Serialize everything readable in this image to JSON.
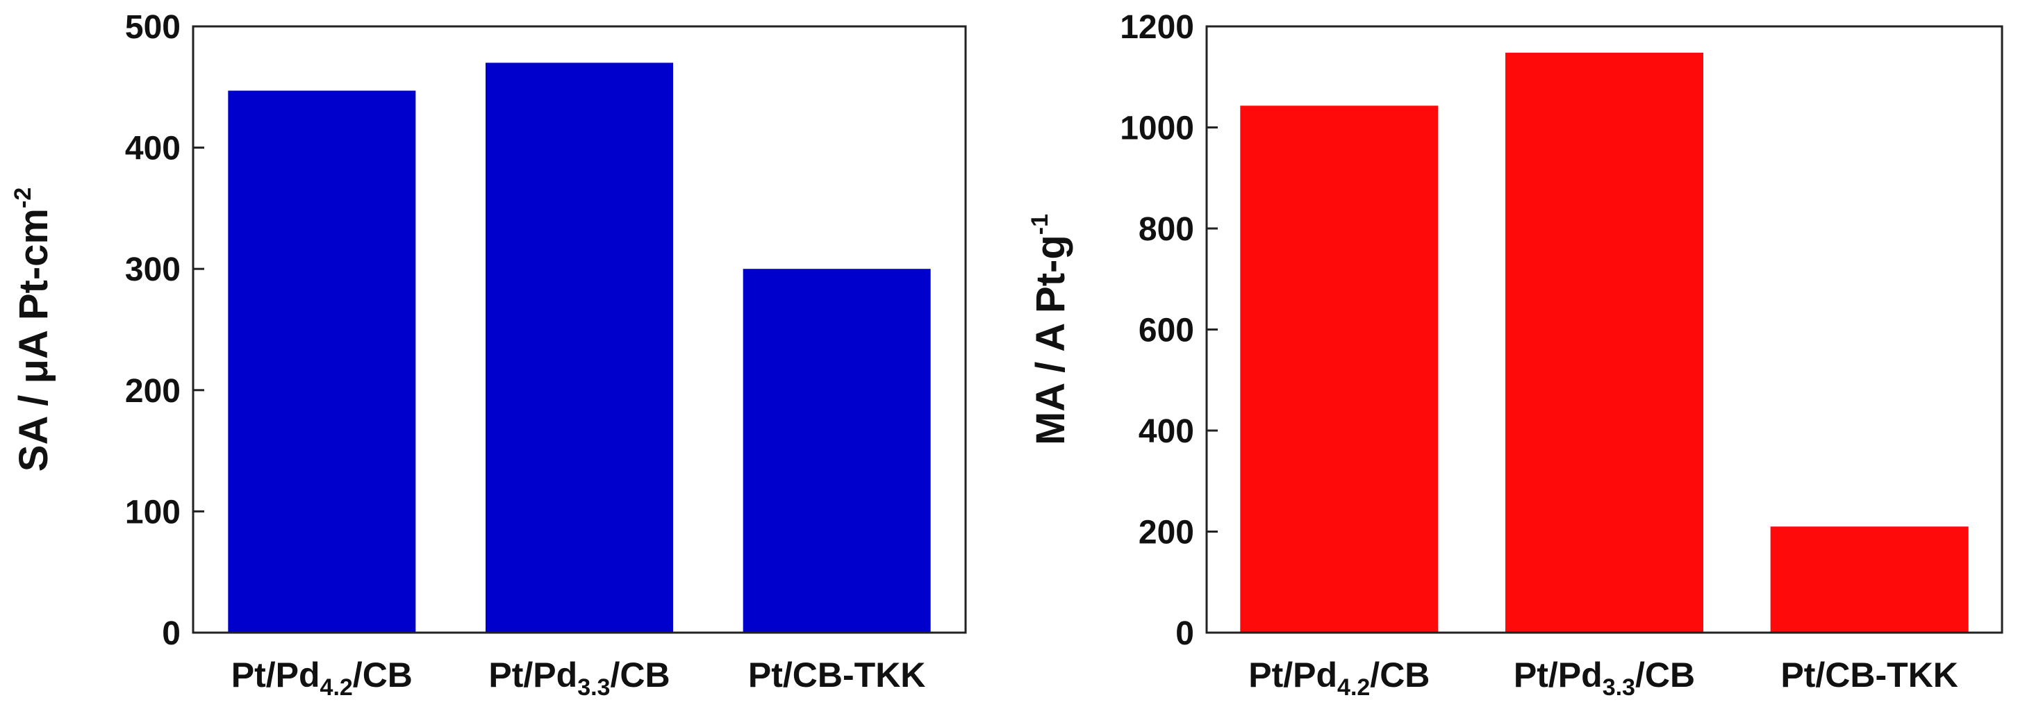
{
  "chart_data": [
    {
      "type": "bar",
      "categories": [
        [
          "Pt/Pd",
          "4.2",
          "/CB"
        ],
        [
          "Pt/Pd",
          "3.3",
          "/CB"
        ],
        [
          "Pt/CB-TKK",
          "",
          ""
        ]
      ],
      "values": [
        447,
        470,
        300
      ],
      "ylabel": [
        "SA  /  μA Pt-cm",
        "-2"
      ],
      "ylim": [
        0,
        500
      ],
      "yticks": [
        0,
        100,
        200,
        300,
        400,
        500
      ],
      "bar_color": "#0000cc",
      "grid": false
    },
    {
      "type": "bar",
      "categories": [
        [
          "Pt/Pd",
          "4.2",
          "/CB"
        ],
        [
          "Pt/Pd",
          "3.3",
          "/CB"
        ],
        [
          "Pt/CB-TKK",
          "",
          ""
        ]
      ],
      "values": [
        1043,
        1148,
        210
      ],
      "ylabel": [
        "MA  /  A Pt-g",
        "-1"
      ],
      "ylim": [
        0,
        1200
      ],
      "yticks": [
        0,
        200,
        400,
        600,
        800,
        1000,
        1200
      ],
      "bar_color": "#ff0a0a",
      "grid": false
    }
  ]
}
